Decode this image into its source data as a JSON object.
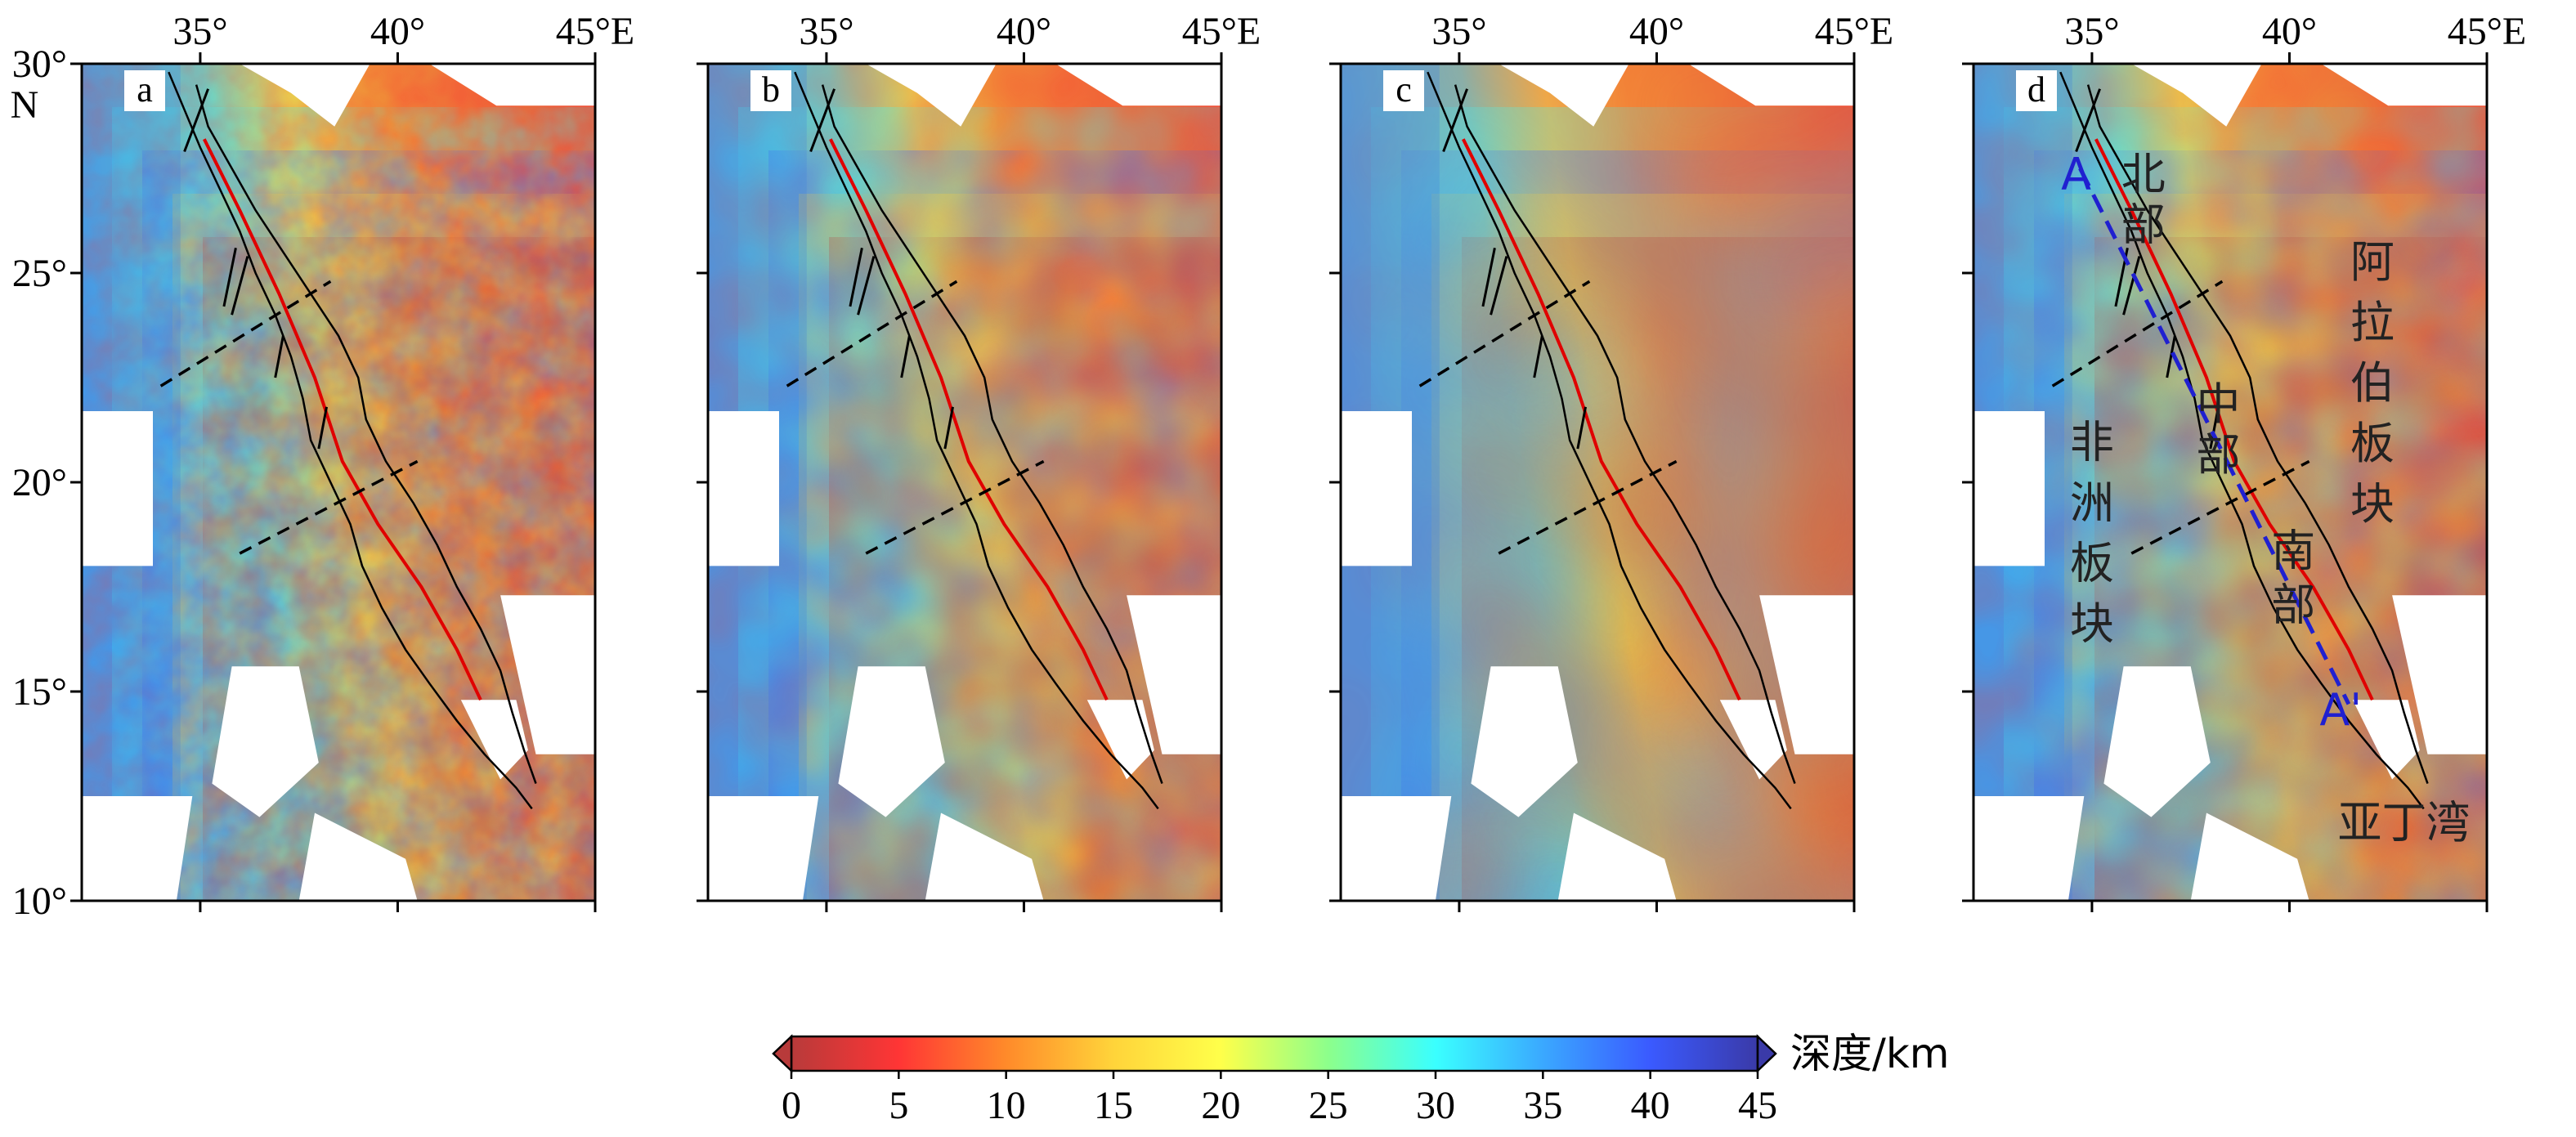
{
  "figure": {
    "lon_ticks": [
      "35°",
      "40°",
      "45°E"
    ],
    "lat_ticks": [
      "30°",
      "25°",
      "20°",
      "15°",
      "10°"
    ],
    "lat_unit": "N",
    "panels": [
      {
        "letter": "a",
        "smoothness": "rough"
      },
      {
        "letter": "b",
        "smoothness": "medium"
      },
      {
        "letter": "c",
        "smoothness": "smooth"
      },
      {
        "letter": "d",
        "smoothness": "medium"
      }
    ]
  },
  "annotations": {
    "north_segment": "北部",
    "central_segment": "中部",
    "south_segment": "南部",
    "arabian_plate": "阿拉伯板块",
    "african_plate": "非洲板块",
    "gulf_of_aden": "亚丁湾",
    "profile_start": "A",
    "profile_end": "A'"
  },
  "colorbar": {
    "title": "深度/km",
    "ticks": [
      "0",
      "5",
      "10",
      "15",
      "20",
      "25",
      "30",
      "35",
      "40",
      "45"
    ],
    "range": [
      0,
      45
    ],
    "colors": [
      "#b83a3a",
      "#ff3535",
      "#ff8a2a",
      "#ffd43a",
      "#ffff4a",
      "#8cff8c",
      "#3affff",
      "#3aa8ff",
      "#3a5aff",
      "#3a3aa8"
    ]
  },
  "colors": {
    "rift_axis": "#e00000",
    "profile_line": "#2020d0",
    "coastline": "#000000",
    "segment_boundary": "#000000"
  }
}
